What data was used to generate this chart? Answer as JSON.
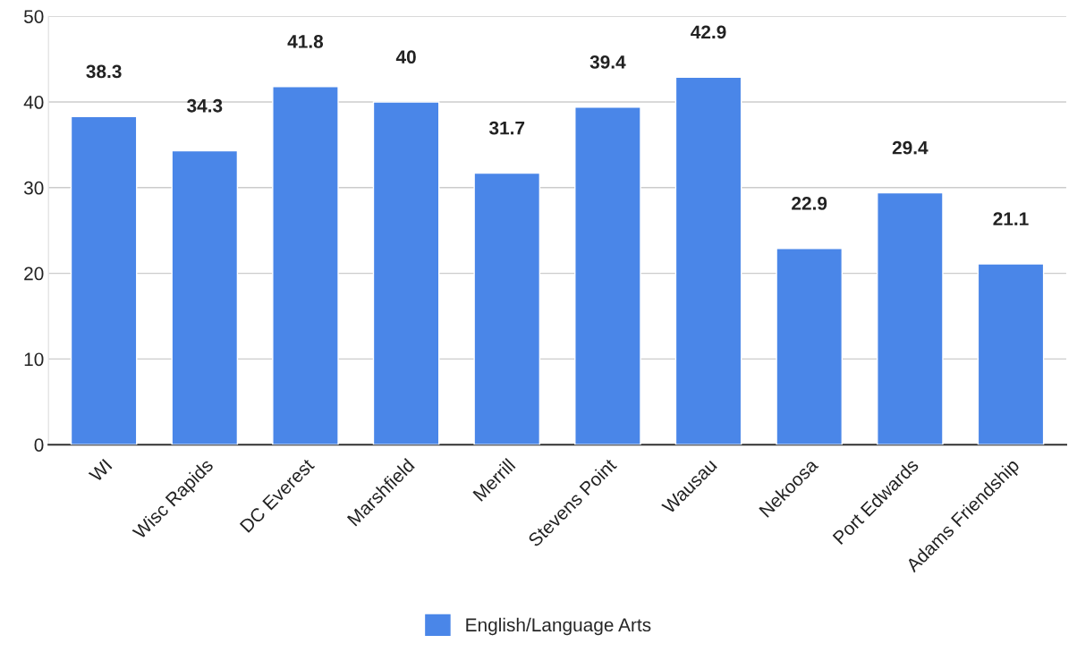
{
  "chart_data": {
    "type": "bar",
    "categories": [
      "WI",
      "Wisc Rapids",
      "DC Everest",
      "Marshfield",
      "Merrill",
      "Stevens Point",
      "Wausau",
      "Nekoosa",
      "Port Edwards",
      "Adams Friendship"
    ],
    "series": [
      {
        "name": "English/Language Arts",
        "color": "#4a86e8",
        "values": [
          38.3,
          34.3,
          41.8,
          40,
          31.7,
          39.4,
          42.9,
          22.9,
          29.4,
          21.1
        ]
      }
    ],
    "ylim": [
      0,
      50
    ],
    "yticks": [
      0,
      10,
      20,
      30,
      40,
      50
    ],
    "grid": "y",
    "legend": "bottom",
    "data_labels": true
  }
}
